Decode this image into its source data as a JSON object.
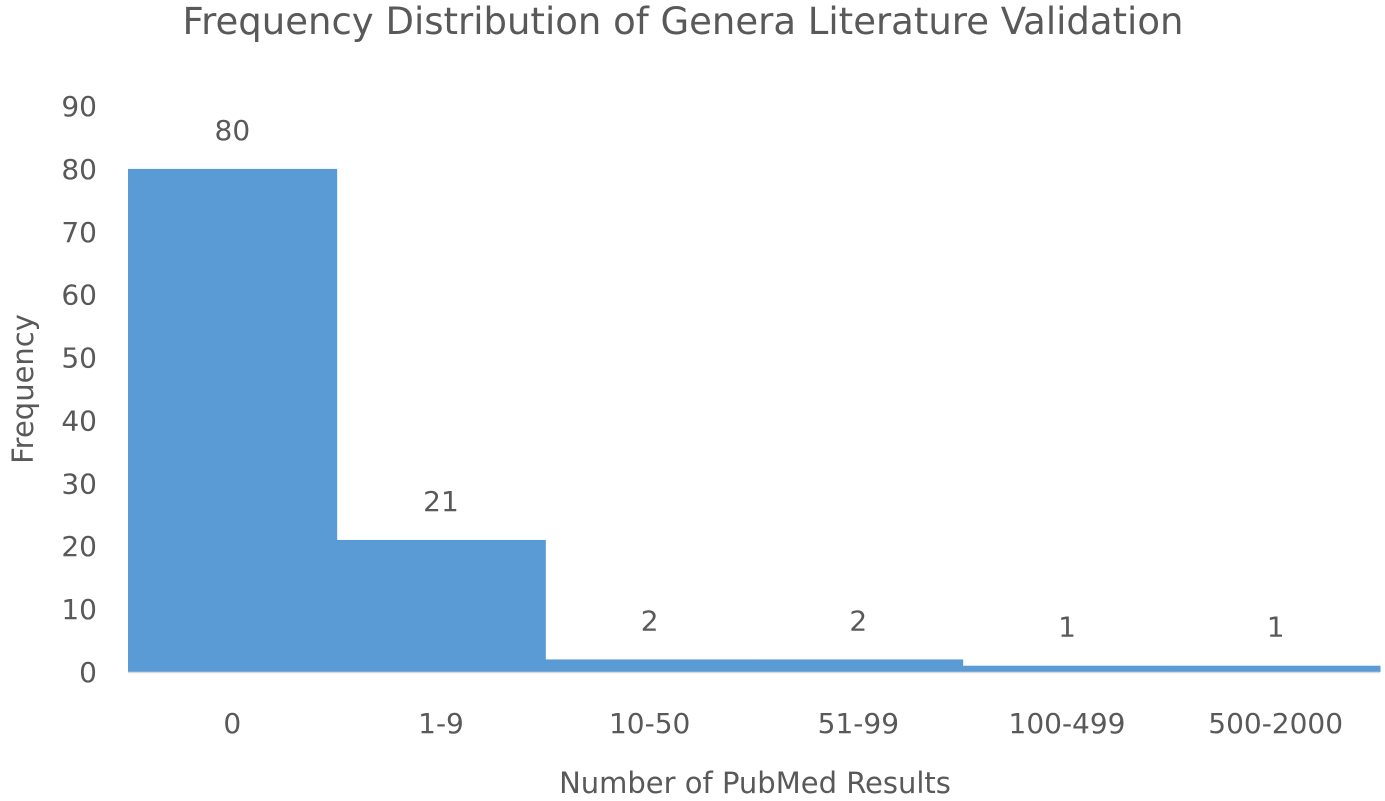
{
  "chart_data": {
    "type": "bar",
    "title": "Frequency Distribution of Genera Literature Validation",
    "xlabel": "Number of PubMed Results",
    "ylabel": "Frequency",
    "categories": [
      "0",
      "1-9",
      "10-50",
      "51-99",
      "100-499",
      "500-2000"
    ],
    "values": [
      80,
      21,
      2,
      2,
      1,
      1
    ],
    "data_labels": [
      "80",
      "21",
      "2",
      "2",
      "1",
      "1"
    ],
    "ylim": [
      0,
      90
    ],
    "yticks": [
      "0",
      "10",
      "20",
      "30",
      "40",
      "50",
      "60",
      "70",
      "80",
      "90"
    ],
    "grid": false,
    "legend": "none",
    "bar_gap": 0,
    "colors": {
      "bar": "#5b9bd5",
      "text": "#595959"
    }
  }
}
